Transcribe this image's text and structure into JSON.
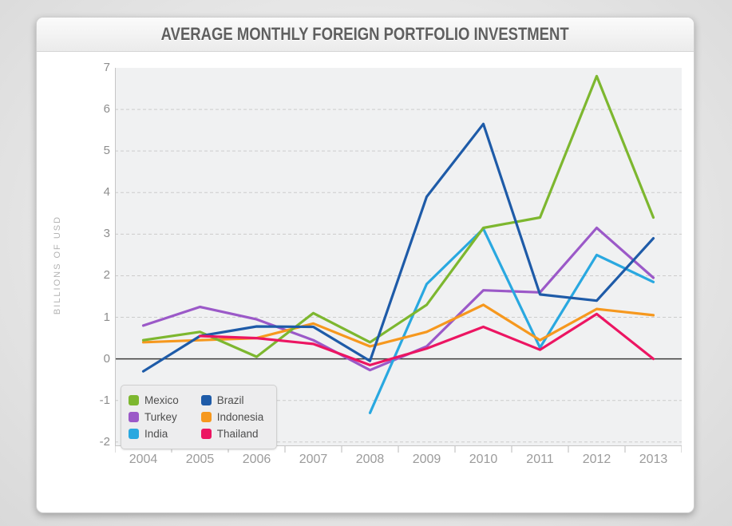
{
  "window": {
    "title": "AVERAGE MONTHLY FOREIGN PORTFOLIO INVESTMENT"
  },
  "chart_data": {
    "type": "line",
    "title": "AVERAGE MONTHLY FOREIGN PORTFOLIO INVESTMENT",
    "xlabel": "",
    "ylabel": "BILLIONS OF USD",
    "categories": [
      "2004",
      "2005",
      "2006",
      "2007",
      "2008",
      "2009",
      "2010",
      "2011",
      "2012",
      "2013"
    ],
    "y_ticks": [
      7,
      6,
      5,
      4,
      3,
      2,
      1,
      0,
      -1,
      -2
    ],
    "ylim": [
      -2.1,
      7
    ],
    "grid": "horizontal dashed gridlines at each integer, solid dark line at zero",
    "legend_position": "bottom-left inside plot, 2 columns",
    "plot_bg": "#f0f1f2",
    "gridline_color": "#cccccc",
    "zero_line_color": "#3c3c3c",
    "axis_line_color": "#c6c6c6",
    "series": [
      {
        "name": "Mexico",
        "color": "#7db72f",
        "values": [
          0.45,
          0.65,
          0.05,
          1.1,
          0.4,
          1.3,
          3.15,
          3.4,
          6.8,
          3.4
        ]
      },
      {
        "name": "Turkey",
        "color": "#9b59c8",
        "values": [
          0.8,
          1.25,
          0.95,
          0.45,
          -0.27,
          0.3,
          1.65,
          1.6,
          3.15,
          1.95
        ]
      },
      {
        "name": "India",
        "color": "#29a8e0",
        "values": [
          null,
          null,
          null,
          null,
          -1.3,
          1.8,
          3.13,
          0.27,
          2.5,
          1.85
        ]
      },
      {
        "name": "Brazil",
        "color": "#1e5ba8",
        "values": [
          -0.3,
          0.55,
          0.78,
          0.77,
          -0.05,
          3.9,
          5.65,
          1.55,
          1.4,
          2.9
        ]
      },
      {
        "name": "Indonesia",
        "color": "#f6981e",
        "values": [
          0.4,
          0.45,
          0.5,
          0.85,
          0.3,
          0.65,
          1.3,
          0.45,
          1.2,
          1.05
        ]
      },
      {
        "name": "Thailand",
        "color": "#ec1562",
        "values": [
          null,
          0.55,
          0.5,
          0.36,
          -0.15,
          0.25,
          0.77,
          0.22,
          1.08,
          0.0
        ]
      }
    ],
    "draw_order": [
      1,
      2,
      4,
      0,
      3,
      5
    ]
  }
}
